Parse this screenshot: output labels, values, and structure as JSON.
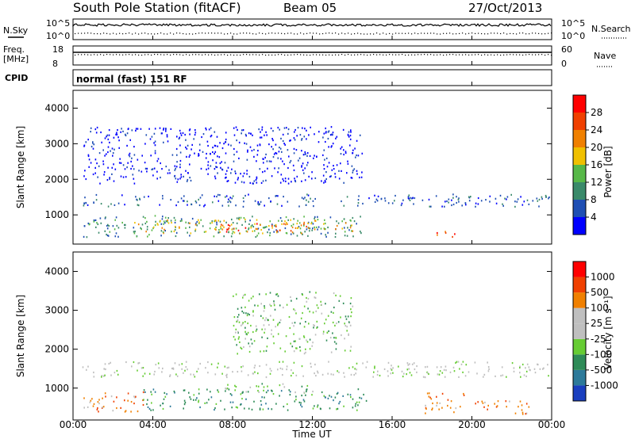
{
  "header": {
    "title": "South Pole Station (fitACF)",
    "beam": "Beam 05",
    "date": "27/Oct/2013"
  },
  "top_panels": {
    "nsky_label": "N.Sky",
    "nsearch_label": "N.Search",
    "nsky_ticks": [
      "10^5",
      "10^0"
    ],
    "nsearch_ticks": [
      "10^5",
      "10^0"
    ],
    "freq_label": "Freq.",
    "freq_unit": "[MHz]",
    "freq_ticks": [
      "18",
      "8"
    ],
    "nave_label": "Nave",
    "nave_ticks": [
      "60",
      "0"
    ],
    "cpid_label": "CPID",
    "cpid_value": "normal (fast) 151 RF"
  },
  "colors": {
    "power_scale": [
      "#0000ff",
      "#1f4fb4",
      "#3a8a6a",
      "#57b848",
      "#f0c000",
      "#f08000",
      "#f04000",
      "#ff0000"
    ],
    "velocity_scale": [
      "#1a3fbf",
      "#2d7a9a",
      "#2e8b57",
      "#66cc33",
      "#bfbfbf",
      "#bfbfbf",
      "#f08000",
      "#f04000",
      "#ff0000"
    ]
  },
  "chart_data": [
    {
      "type": "heatmap",
      "name_panel": "power",
      "ylabel": "Slant Range [km]",
      "xlabel": "",
      "yticks": [
        "1000",
        "2000",
        "3000",
        "4000"
      ],
      "ylim": [
        180,
        4500
      ],
      "xlim": [
        "00:00",
        "24:00"
      ],
      "colorbar": {
        "label": "Power [dB]",
        "ticks": [
          "4",
          "8",
          "12",
          "16",
          "20",
          "24",
          "28"
        ],
        "range": [
          0,
          30
        ]
      },
      "scatter_bands": [
        {
          "t0": 0.4,
          "t1": 23.9,
          "r0": 1250,
          "r1": 1600,
          "level": 1
        },
        {
          "t0": 0.5,
          "t1": 14.8,
          "r0": 400,
          "r1": 1000,
          "level": 2
        },
        {
          "t0": 3.0,
          "t1": 14.0,
          "r0": 500,
          "r1": 900,
          "level": 4
        },
        {
          "t0": 7.2,
          "t1": 11.7,
          "r0": 550,
          "r1": 780,
          "level": 6
        },
        {
          "t0": 17.6,
          "t1": 19.2,
          "r0": 400,
          "r1": 560,
          "level": 6
        },
        {
          "t0": 0.5,
          "t1": 14.5,
          "r0": 1900,
          "r1": 3500,
          "level": 0
        }
      ]
    },
    {
      "type": "heatmap",
      "name_panel": "velocity",
      "ylabel": "Slant Range [km]",
      "xlabel": "Time UT",
      "yticks": [
        "1000",
        "2000",
        "3000",
        "4000"
      ],
      "ylim": [
        180,
        4500
      ],
      "xticks": [
        "00:00",
        "04:00",
        "08:00",
        "12:00",
        "16:00",
        "20:00",
        "00:00"
      ],
      "colorbar": {
        "label": "Velocity [m s⁻¹]",
        "ticks": [
          "1000",
          "500",
          "100",
          "25",
          "-25",
          "-100",
          "-500",
          "-1000"
        ]
      },
      "scatter_bands": [
        {
          "t0": 0.4,
          "t1": 23.9,
          "r0": 1300,
          "r1": 1700,
          "level": 4
        },
        {
          "t0": 0.5,
          "t1": 3.5,
          "r0": 400,
          "r1": 950,
          "level": 6
        },
        {
          "t0": 3.5,
          "t1": 14.8,
          "r0": 450,
          "r1": 1000,
          "level": 2
        },
        {
          "t0": 7.5,
          "t1": 12.0,
          "r0": 900,
          "r1": 1150,
          "level": 3
        },
        {
          "t0": 17.6,
          "t1": 19.6,
          "r0": 350,
          "r1": 900,
          "level": 6
        },
        {
          "t0": 20.0,
          "t1": 23.0,
          "r0": 350,
          "r1": 700,
          "level": 6
        },
        {
          "t0": 8.0,
          "t1": 14.0,
          "r0": 1900,
          "r1": 3500,
          "level": 3
        }
      ]
    }
  ]
}
